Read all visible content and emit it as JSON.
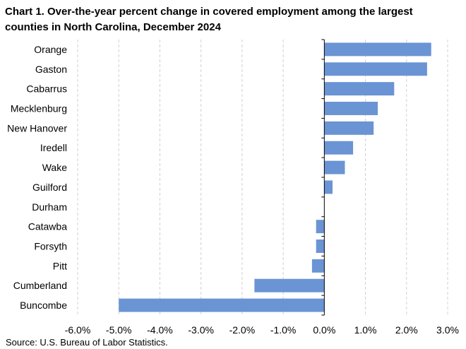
{
  "chart_data": {
    "type": "bar",
    "orientation": "horizontal",
    "title": "Chart 1. Over-the-year percent change in covered employment among the largest counties in North Carolina, December 2024",
    "source": "Source: U.S. Bureau of Labor Statistics.",
    "categories": [
      "Orange",
      "Gaston",
      "Cabarrus",
      "Mecklenburg",
      "New Hanover",
      "Iredell",
      "Wake",
      "Guilford",
      "Durham",
      "Catawba",
      "Forsyth",
      "Pitt",
      "Cumberland",
      "Buncombe"
    ],
    "values": [
      2.6,
      2.5,
      1.7,
      1.3,
      1.2,
      0.7,
      0.5,
      0.2,
      0.0,
      -0.2,
      -0.2,
      -0.3,
      -1.7,
      -5.0
    ],
    "xlim": [
      -6.0,
      3.0
    ],
    "x_ticks": [
      -6.0,
      -5.0,
      -4.0,
      -3.0,
      -2.0,
      -1.0,
      0.0,
      1.0,
      2.0,
      3.0
    ],
    "x_tick_labels": [
      "-6.0%",
      "-5.0%",
      "-4.0%",
      "-3.0%",
      "-2.0%",
      "-1.0%",
      "0.0%",
      "1.0%",
      "2.0%",
      "3.0%"
    ],
    "xlabel": "",
    "ylabel": "",
    "grid": "vertical dashed",
    "legend": "none",
    "colors": {
      "bar": "#6a94d4",
      "grid": "#d0d0d0",
      "axis": "#000000"
    }
  }
}
